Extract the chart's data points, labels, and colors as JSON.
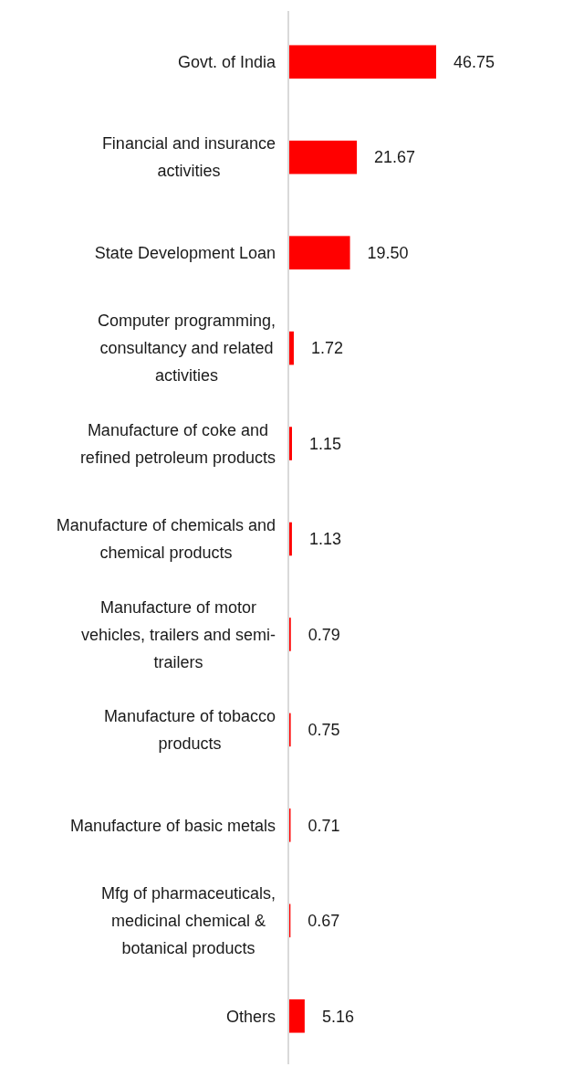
{
  "chart_data": {
    "type": "bar",
    "orientation": "horizontal",
    "categories": [
      "Govt. of India",
      "Financial and insurance activities",
      "State Development Loan",
      "Computer programming, consultancy and related activities",
      "Manufacture of coke and refined petroleum products",
      "Manufacture of chemicals and chemical products",
      "Manufacture of motor vehicles, trailers and semi-trailers",
      "Manufacture of tobacco products",
      "Manufacture of basic metals",
      "Mfg of pharmaceuticals, medicinal chemical & botanical products",
      "Others"
    ],
    "values": [
      46.75,
      21.67,
      19.5,
      1.72,
      1.15,
      1.13,
      0.79,
      0.75,
      0.71,
      0.67,
      5.16
    ],
    "value_labels": [
      "46.75",
      "21.67",
      "19.50",
      "1.72",
      "1.15",
      "1.13",
      "0.79",
      "0.75",
      "0.71",
      "0.67",
      "5.16"
    ],
    "color": "#ff0000"
  }
}
